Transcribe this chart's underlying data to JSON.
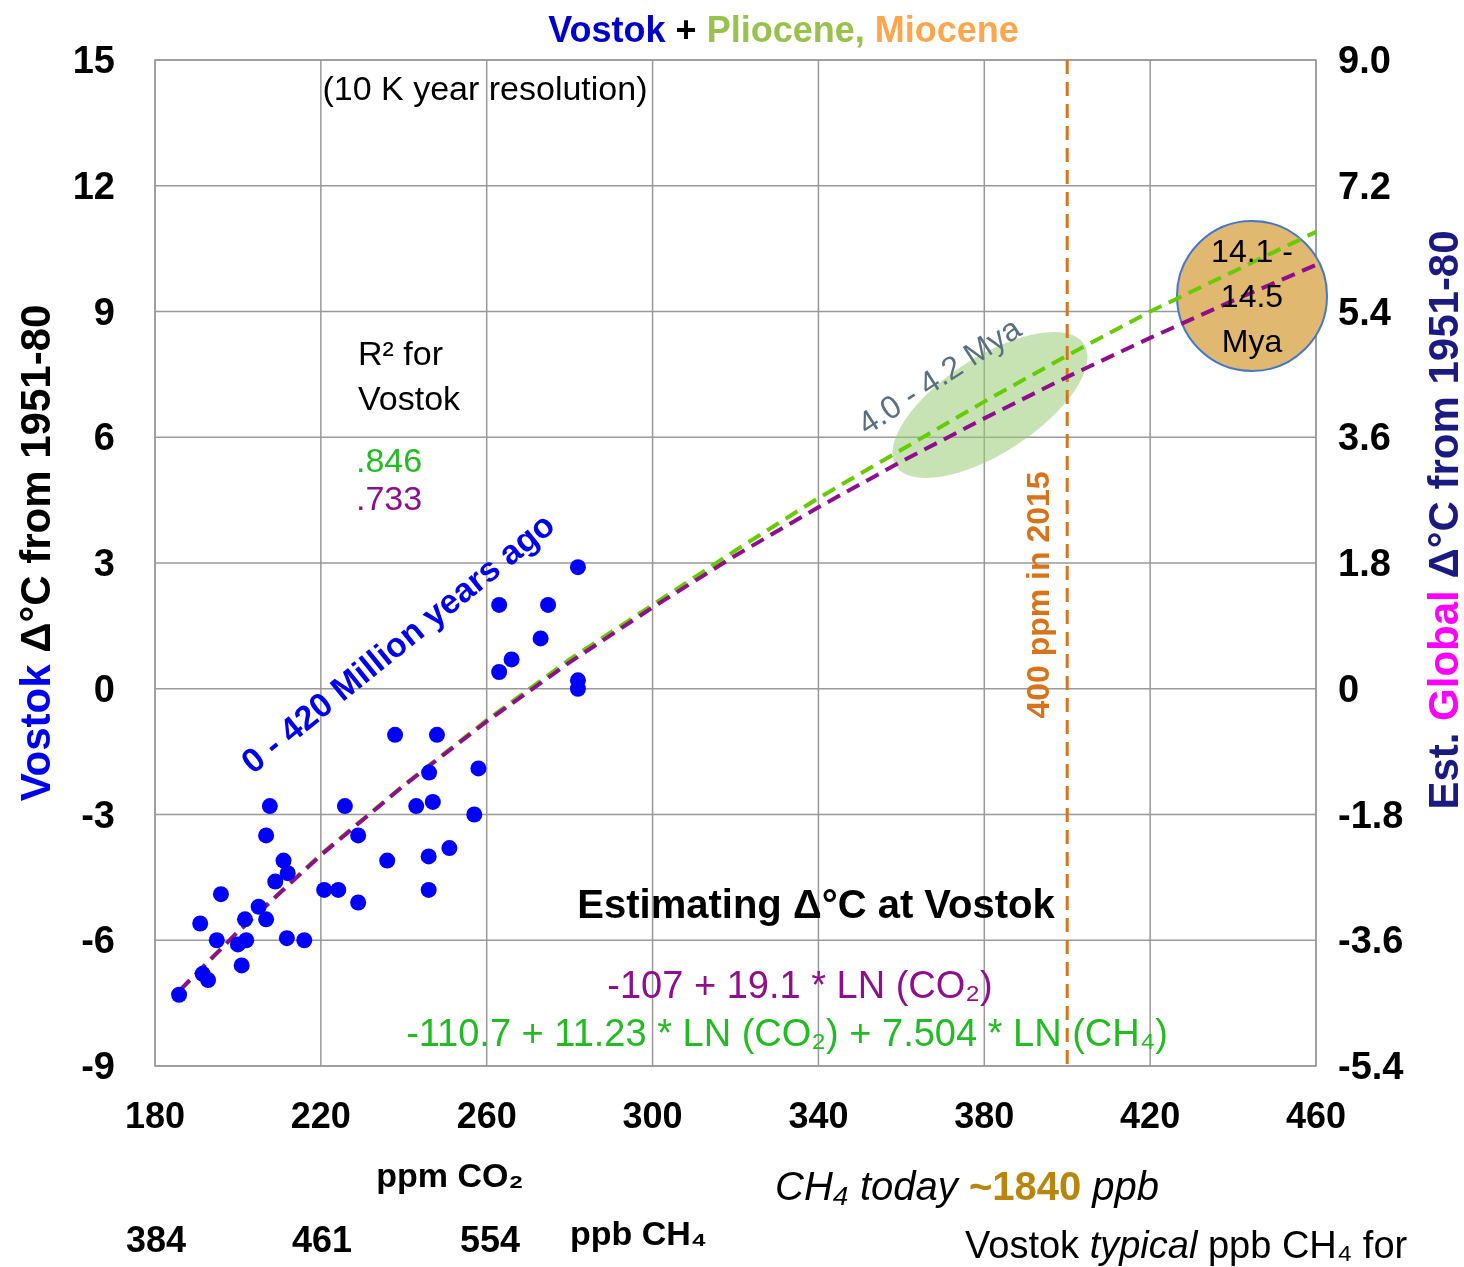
{
  "chart_data": {
    "type": "scatter",
    "title": "Vostok + Pliocene, Miocene",
    "xlabel": "ppm CO₂",
    "ylabel": "Vostok Δ°C from 1951-80",
    "y2label": "Est. Global Δ°C from 1951-80",
    "xlim": [
      180,
      460
    ],
    "xticks": [
      180,
      220,
      260,
      300,
      340,
      380,
      420,
      460
    ],
    "ylim": [
      -9,
      15
    ],
    "yticks": [
      -9,
      -6,
      -3,
      0,
      3,
      6,
      9,
      12,
      15
    ],
    "y2lim": [
      -5.4,
      9.0
    ],
    "y2ticks": [
      {
        "value": -5.4,
        "label": "-5.4"
      },
      {
        "value": -3.6,
        "label": "-3.6"
      },
      {
        "value": -1.8,
        "label": "-1.8"
      },
      0,
      {
        "value": 1.8,
        "label": "1.8"
      },
      {
        "value": 3.6,
        "label": "3.6"
      },
      {
        "value": 5.4,
        "label": "5.4"
      },
      {
        "value": 7.2,
        "label": "7.2"
      },
      {
        "value": 9.0,
        "label": "9.0"
      }
    ],
    "grid": true,
    "series": [
      {
        "marker": "circle",
        "color": "#0000ff",
        "x": [
          185.8,
          190.9,
          191.5,
          192.8,
          195.9,
          194.9,
          200.9,
          200,
          202,
          205,
          206.8,
          201.7,
          209,
          211,
          212,
          206.8,
          207.7,
          211.8,
          216,
          220.8,
          224.2,
          229,
          229,
          225.8,
          236,
          237.9,
          243,
          246.1,
          247,
          246,
          246,
          248,
          251,
          257,
          258,
          263,
          266,
          263,
          274.8,
          273,
          282,
          282,
          282
        ],
        "values": [
          -7.3,
          -5.6,
          -6.8,
          -6.95,
          -4.9,
          -6.0,
          -6.6,
          -6.1,
          -6.0,
          -5.2,
          -5.5,
          -5.5,
          -4.6,
          -4.1,
          -4.4,
          -3.5,
          -2.8,
          -5.95,
          -6.0,
          -4.8,
          -4.8,
          -5.1,
          -3.5,
          -2.8,
          -4.1,
          -1.1,
          -2.8,
          -2.0,
          -2.7,
          -4.0,
          -4.8,
          -1.1,
          -3.8,
          -3.0,
          -1.9,
          0.4,
          0.7,
          2.0,
          2.0,
          1.2,
          2.9,
          0.2,
          0.0
        ]
      },
      {
        "type": "line",
        "color": "#66cc00",
        "line_style": "dashed",
        "x": [
          186,
          200,
          220,
          240,
          260,
          280,
          300,
          320,
          340,
          360,
          380,
          400,
          420,
          440,
          460
        ],
        "values": [
          -7.2,
          -5.8,
          -3.95,
          -2.3,
          -0.75,
          0.7,
          2.0,
          3.3,
          4.55,
          5.7,
          6.85,
          7.95,
          9.0,
          9.95,
          10.9
        ]
      },
      {
        "type": "line",
        "color": "#8e0e8e",
        "line_style": "dashed",
        "x": [
          186,
          200,
          220,
          240,
          260,
          280,
          300,
          320,
          340,
          360,
          380,
          400,
          420,
          440,
          460
        ],
        "values": [
          -7.19,
          -5.8,
          -3.97,
          -2.31,
          -0.78,
          0.63,
          1.94,
          3.18,
          4.33,
          5.42,
          6.45,
          7.44,
          8.37,
          9.26,
          10.11
        ]
      }
    ],
    "ref_lines": [
      {
        "axis": "x",
        "value": 400,
        "label": "400 ppm in 2015",
        "color": "#d9731a",
        "line_style": "dashed"
      }
    ],
    "annotations": [
      "(10 K year resolution)",
      "R² for",
      "Vostok",
      ".846",
      ".733",
      "0 - 420 Million years ago",
      "4.0 - 4.2 Mya",
      "14.1 - 14.5 Mya",
      "Estimating Δ°C at Vostok",
      "-107 + 19.1 * LN (CO₂)",
      "-110.7 + 11.23 * LN (CO₂) + 7.504 * LN (CH₄)",
      "384",
      "461",
      "554",
      "ppb CH₄",
      "CH₄ today ~1840 ppb",
      "Vostok typical ppb CH₄ for"
    ]
  }
}
